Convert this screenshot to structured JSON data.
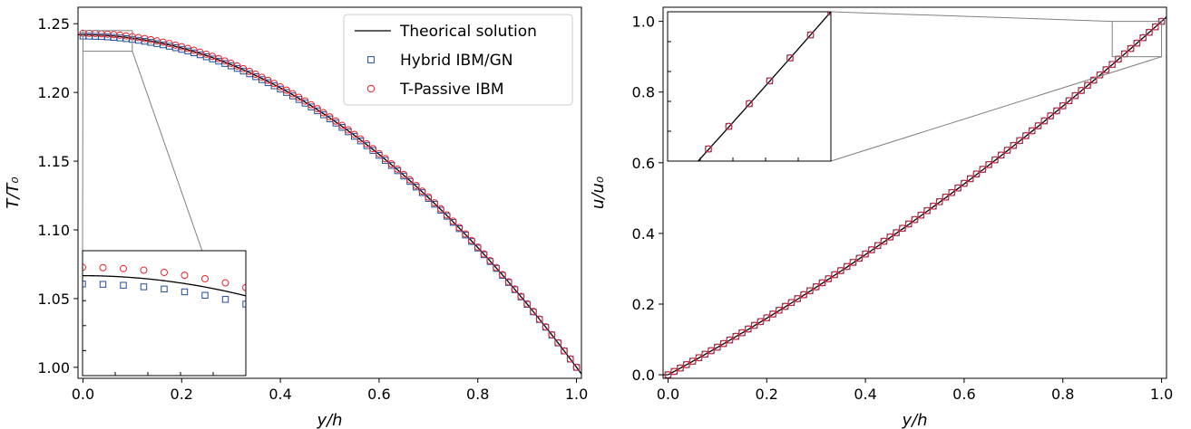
{
  "chart_data": [
    {
      "type": "scatter",
      "id": "left",
      "xlabel": "y/h",
      "ylabel": "T/T₀",
      "xlim": [
        -0.01,
        1.01
      ],
      "ylim": [
        0.992,
        1.262
      ],
      "xticks": [
        "0.0",
        "0.2",
        "0.4",
        "0.6",
        "0.8",
        "1.0"
      ],
      "xtick_values": [
        0,
        0.2,
        0.4,
        0.6,
        0.8,
        1.0
      ],
      "yticks": [
        "1.00",
        "1.05",
        "1.10",
        "1.15",
        "1.20",
        "1.25"
      ],
      "ytick_values": [
        1.0,
        1.05,
        1.1,
        1.15,
        1.2,
        1.25
      ],
      "grid": false,
      "legend_position": "top-right",
      "series": [
        {
          "name": "Theorical solution",
          "kind": "line",
          "color": "#000000",
          "model": "T = 1.242 - 0.242*(y/h)^2"
        },
        {
          "name": "Hybrid IBM/GN",
          "kind": "square-markers",
          "color": "#1f4e9c",
          "model": "T = 1.241 - 0.241*(y/h)^2",
          "x_step": 0.0125
        },
        {
          "name": "T-Passive IBM",
          "kind": "circle-markers",
          "color": "#e8242c",
          "model": "T = 1.243 - 0.243*(y/h)^2",
          "x_step": 0.0125
        }
      ],
      "inset": {
        "xlim": [
          0,
          0.1
        ],
        "ylim": [
          1.23,
          1.245
        ]
      }
    },
    {
      "type": "scatter",
      "id": "right",
      "xlabel": "y/h",
      "ylabel": "u/u₀",
      "xlim": [
        -0.01,
        1.01
      ],
      "ylim": [
        -0.01,
        1.04
      ],
      "xticks": [
        "0.0",
        "0.2",
        "0.4",
        "0.6",
        "0.8",
        "1.0"
      ],
      "xtick_values": [
        0,
        0.2,
        0.4,
        0.6,
        0.8,
        1.0
      ],
      "yticks": [
        "0.0",
        "0.2",
        "0.4",
        "0.6",
        "0.8",
        "1.0"
      ],
      "ytick_values": [
        0,
        0.2,
        0.4,
        0.6,
        0.8,
        1.0
      ],
      "grid": false,
      "series": [
        {
          "name": "Theorical solution",
          "kind": "line",
          "color": "#000000",
          "model": "u = 0.75*(y/h) + 0.25*(y/h)^2"
        },
        {
          "name": "Hybrid IBM/GN",
          "kind": "square-markers",
          "color": "#1f4e9c",
          "model": "u = 0.757*(y/h) + 0.243*(y/h)^2",
          "x_step": 0.0125
        },
        {
          "name": "T-Passive IBM",
          "kind": "circle-markers",
          "color": "#e8242c",
          "model": "u = 0.757*(y/h) + 0.243*(y/h)^2",
          "x_step": 0.0125
        }
      ],
      "inset": {
        "xlim": [
          0.9,
          1.0
        ],
        "ylim": [
          0.9,
          1.0
        ]
      }
    }
  ]
}
